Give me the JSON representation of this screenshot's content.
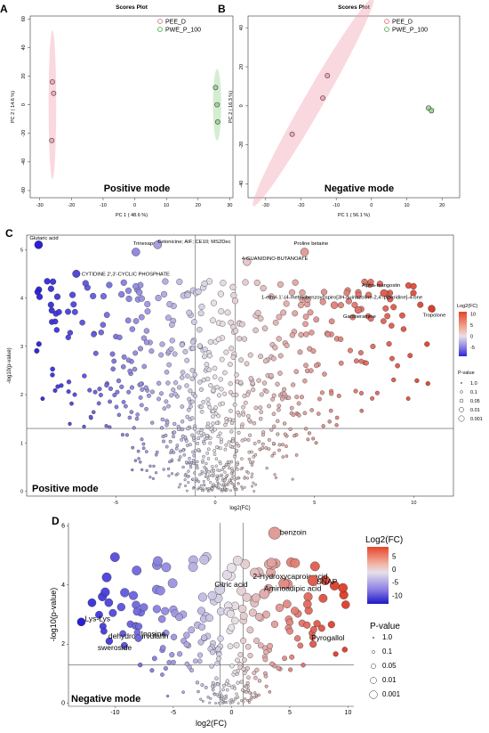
{
  "chart_data": [
    {
      "type": "scatter",
      "panel_label": "A",
      "title": "Scores Plot",
      "xlabel": "PC 1 ( 48.6 %)",
      "ylabel": "PC 2 ( 14.6 %)",
      "xlim": [
        -33,
        31
      ],
      "ylim": [
        -65,
        62
      ],
      "xticks": [
        -30,
        -20,
        -10,
        0,
        10,
        20,
        30
      ],
      "yticks": [
        -60,
        -40,
        -20,
        0,
        20,
        40,
        60
      ],
      "mode_label": "Positive mode",
      "legend_position": "top-right",
      "series": [
        {
          "name": "PEE_D",
          "color": "#e05a7a",
          "fill": "#f4a9b8",
          "points": [
            [
              -26,
              16
            ],
            [
              -25.6,
              8
            ],
            [
              -26.2,
              -25
            ]
          ],
          "ellipse": {
            "cx": -26,
            "cy": 0,
            "rx": 1.2,
            "ry": 52,
            "angle": 0
          }
        },
        {
          "name": "PWE_P_100",
          "color": "#3aa53a",
          "fill": "#9fd89a",
          "points": [
            [
              25.5,
              12
            ],
            [
              26,
              0
            ],
            [
              26.2,
              -12
            ]
          ],
          "ellipse": {
            "cx": 26,
            "cy": 0,
            "rx": 1.3,
            "ry": 25,
            "angle": 0
          }
        }
      ]
    },
    {
      "type": "scatter",
      "panel_label": "B",
      "title": "Scores Plot",
      "xlabel": "PC 1 ( 56.1 %)",
      "ylabel": "PC 2 ( 16.3 %)",
      "xlim": [
        -35,
        25
      ],
      "ylim": [
        -47,
        46
      ],
      "xticks": [
        -30,
        -20,
        -10,
        0,
        10,
        20
      ],
      "yticks": [
        -40,
        -20,
        0,
        20,
        40
      ],
      "mode_label": "Negative mode",
      "legend_position": "top-right",
      "series": [
        {
          "name": "PEE_D",
          "color": "#e05a7a",
          "fill": "#f4a9b8",
          "points": [
            [
              -12.5,
              15.5
            ],
            [
              -13.8,
              4
            ],
            [
              -22.5,
              -14.5
            ]
          ],
          "ellipse": {
            "cx": -16.5,
            "cy": 2,
            "rx": 34,
            "ry": 5.5,
            "angle": -60
          }
        },
        {
          "name": "PWE_P_100",
          "color": "#3aa53a",
          "fill": "#9fd89a",
          "points": [
            [
              16.2,
              -1
            ],
            [
              17,
              -2.5
            ]
          ],
          "ellipse": {
            "cx": 16.6,
            "cy": -1.7,
            "rx": 1.4,
            "ry": 1.1,
            "angle": 0
          }
        }
      ]
    },
    {
      "type": "scatter",
      "panel_label": "C",
      "xlabel": "log2(FC)",
      "ylabel": "-log10(p-value)",
      "xlim": [
        -9.5,
        12
      ],
      "ylim": [
        -0.1,
        5.3
      ],
      "xticks": [
        -5,
        0,
        5,
        10
      ],
      "yticks": [
        0,
        1,
        2,
        3,
        4,
        5
      ],
      "vlines": [
        -1,
        1
      ],
      "hline": 1.3,
      "mode_label": "Positive mode",
      "colorbar": {
        "title": "Log2(FC)",
        "ticks": [
          10,
          5,
          0,
          -5
        ],
        "range": [
          -9,
          11
        ]
      },
      "size_legend": {
        "title": "P-value",
        "values": [
          "1.0",
          "0.1",
          "0.05",
          "0.01",
          "0.001"
        ]
      },
      "labeled_points": [
        {
          "x": -8.9,
          "y": 5.1,
          "label": "Glutaric acid"
        },
        {
          "x": -4.0,
          "y": 4.95,
          "label": "Trinexapac"
        },
        {
          "x": -2.9,
          "y": 5.1,
          "label": "Betonicine; AIF; CE10; MS2Dec"
        },
        {
          "x": 4.5,
          "y": 4.95,
          "label": "Proline betaine"
        },
        {
          "x": 1.6,
          "y": 4.75,
          "label": "4-GUANIDINO-BUTANOATE"
        },
        {
          "x": -7.0,
          "y": 4.5,
          "label": "CYTIDINE 2',3'-CYCLIC PHOSPHATE"
        },
        {
          "x": 8.5,
          "y": 4.1,
          "label": "Alpha-mangostin"
        },
        {
          "x": 6.0,
          "y": 3.85,
          "label": "1-ethyl-1'-(4-methylbenzoyl)spiro[3H-quinazoline-2,4'-piperidine]-4-one"
        },
        {
          "x": 7.2,
          "y": 3.75,
          "label": "Gardneramine"
        },
        {
          "x": 10.9,
          "y": 3.78,
          "label": "Tropolone"
        }
      ],
      "cloud_points": 900,
      "cloud_note": "dense cloud of ~900 unlabelled features, most within |log2FC|<6 and p<0.05 region above 1.3"
    },
    {
      "type": "scatter",
      "panel_label": "D",
      "xlabel": "log2(FC)",
      "ylabel": "-log10(p-value)",
      "xlim": [
        -14,
        10.5
      ],
      "ylim": [
        -0.1,
        6.1
      ],
      "xticks": [
        -10,
        -5,
        0,
        5,
        10
      ],
      "yticks": [
        0,
        2,
        4,
        6
      ],
      "vlines": [
        -1,
        1
      ],
      "hline": 1.3,
      "mode_label": "Negative mode",
      "colorbar": {
        "title": "Log2(FC)",
        "ticks": [
          5,
          0,
          -5,
          -10
        ],
        "range": [
          -13,
          9
        ]
      },
      "size_legend": {
        "title": "P-value",
        "values": [
          "1.0",
          "0.1",
          "0.05",
          "0.01",
          "0.001"
        ]
      },
      "labeled_points": [
        {
          "x": 3.7,
          "y": 5.75,
          "label": "benzoin"
        },
        {
          "x": 4.5,
          "y": 4.05,
          "label": "2-Hydroxycaproic acid"
        },
        {
          "x": 7.0,
          "y": 4.15,
          "label": "SNAP"
        },
        {
          "x": -1.0,
          "y": 3.85,
          "label": "Citric acid"
        },
        {
          "x": 2.8,
          "y": 3.7,
          "label": "Aminoadipic acid"
        },
        {
          "x": -12.9,
          "y": 2.75,
          "label": "Lys-Lys"
        },
        {
          "x": -10.5,
          "y": 2.1,
          "label": "dehydrocurvularin"
        },
        {
          "x": -8.0,
          "y": 2.2,
          "label": "Inosine"
        },
        {
          "x": -9.2,
          "y": 1.95,
          "label": "sweroside"
        },
        {
          "x": 7.0,
          "y": 2.0,
          "label": "Pyrogallol"
        }
      ],
      "cloud_points": 320
    }
  ]
}
